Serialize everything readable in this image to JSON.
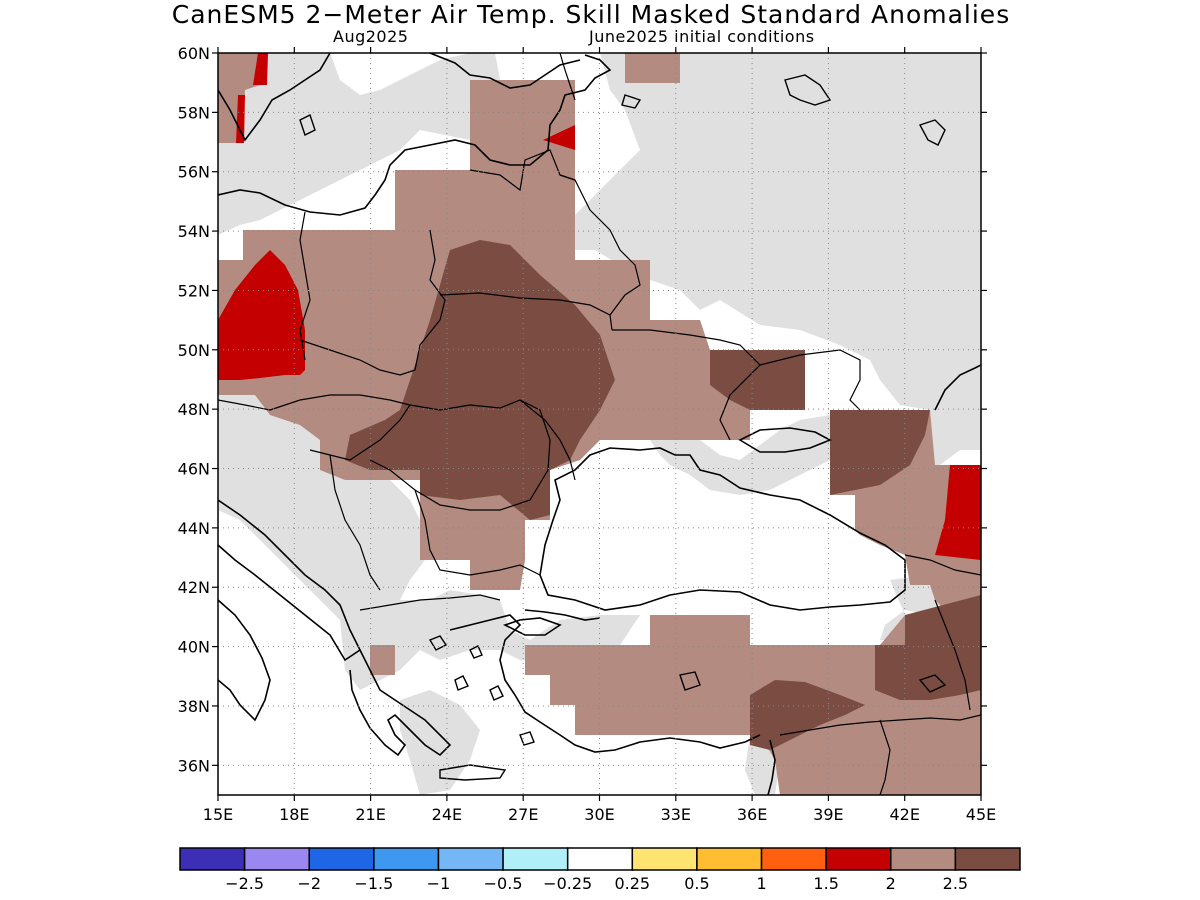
{
  "title": "CanESM5 2−Meter Air Temp. Skill Masked Standard Anomalies",
  "subtitle_left": "Aug2025",
  "subtitle_right": "June2025 initial conditions",
  "map": {
    "lat_range": [
      35,
      60
    ],
    "lon_range": [
      15,
      45
    ],
    "lat_ticks": [
      "60N",
      "58N",
      "56N",
      "54N",
      "52N",
      "50N",
      "48N",
      "46N",
      "44N",
      "42N",
      "40N",
      "38N",
      "36N"
    ],
    "lon_ticks": [
      "15E",
      "18E",
      "21E",
      "24E",
      "27E",
      "30E",
      "33E",
      "36E",
      "39E",
      "42E",
      "45E"
    ],
    "grid": "dotted",
    "masked_color": "#e0e0e0",
    "ocean_color": "#ffffff",
    "coastline_color": "#000000"
  },
  "colorbar": {
    "colors": [
      "#3c2fb6",
      "#9a88f0",
      "#1e66e6",
      "#3f98f0",
      "#74b6f6",
      "#b0eef8",
      "#ffffff",
      "#ffe472",
      "#ffbe32",
      "#ff6010",
      "#c40000",
      "#b38b80",
      "#7a4c42"
    ],
    "labels": [
      "−2.5",
      "−2",
      "−1.5",
      "−1",
      "−0.5",
      "−0.25",
      "0.25",
      "0.5",
      "1",
      "1.5",
      "2",
      "2.5"
    ]
  }
}
